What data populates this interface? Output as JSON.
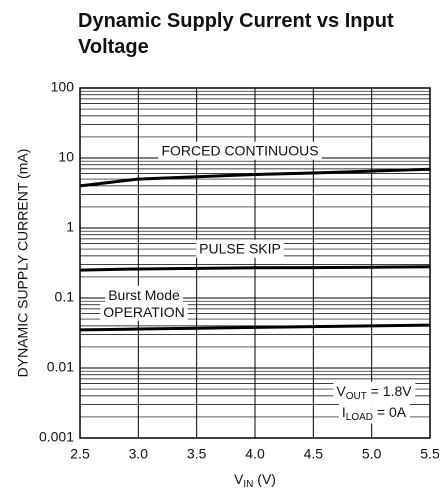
{
  "chart_data": {
    "type": "line",
    "title": [
      "Dynamic Supply Current vs Input",
      "Voltage"
    ],
    "ylabel": "DYNAMIC SUPPLY CURRENT (mA)",
    "xlabel": [
      "V",
      "IN",
      " (V)"
    ],
    "x": [
      2.5,
      3.0,
      3.5,
      4.0,
      4.5,
      5.0,
      5.5
    ],
    "series": [
      {
        "name": "FORCED CONTINUOUS",
        "color": "#000000",
        "values": [
          4.0,
          5.0,
          5.4,
          5.8,
          6.1,
          6.5,
          6.9
        ]
      },
      {
        "name": "PULSE SKIP",
        "color": "#000000",
        "values": [
          0.25,
          0.26,
          0.265,
          0.27,
          0.272,
          0.275,
          0.28
        ]
      },
      {
        "name": "Burst Mode OPERATION",
        "color": "#000000",
        "values": [
          0.035,
          0.036,
          0.037,
          0.038,
          0.039,
          0.04,
          0.041
        ]
      }
    ],
    "annotations": [
      [
        "Burst Mode"
      ],
      [
        "OPERATION"
      ],
      [
        "V",
        "OUT",
        " = 1.8V"
      ],
      [
        "I",
        "LOAD",
        " = 0A"
      ]
    ],
    "xlim": [
      2.5,
      5.5
    ],
    "xticks": [
      2.5,
      {
        "value": 3,
        "label": "3.0"
      },
      3.5,
      {
        "value": 4,
        "label": "4.0"
      },
      4.5,
      {
        "value": 5,
        "label": "5.0"
      },
      5.5
    ],
    "ylim": [
      0.001,
      100
    ],
    "yticks": [
      0.001,
      0.01,
      0.1,
      1,
      10,
      100
    ],
    "ylog": true,
    "grid": true,
    "minor_grid": true
  }
}
